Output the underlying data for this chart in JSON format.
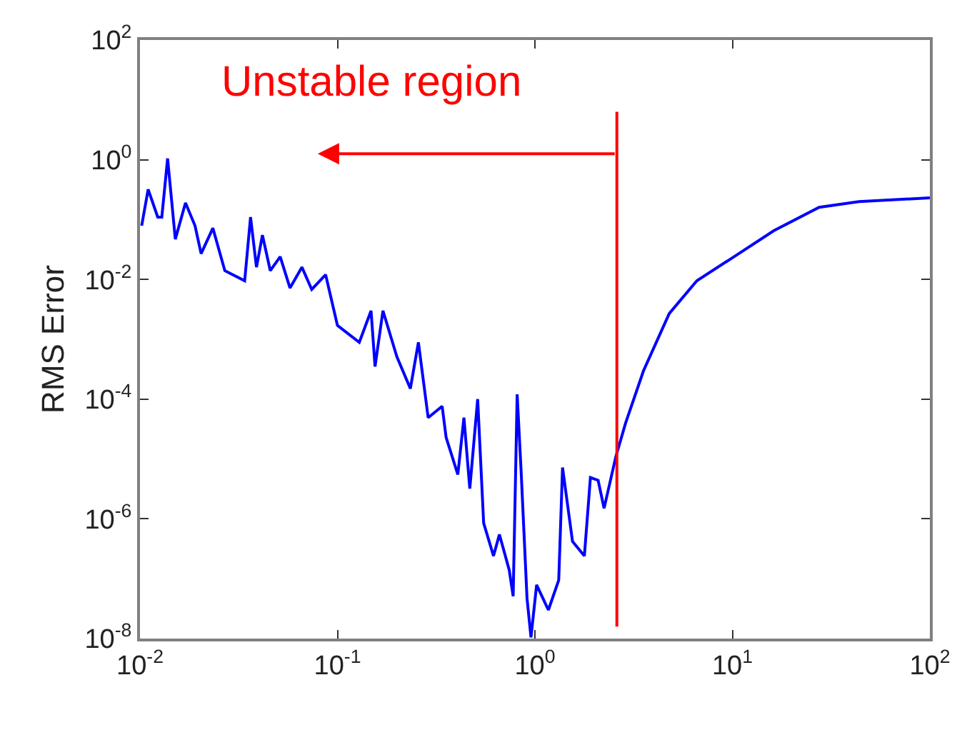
{
  "chart_data": {
    "type": "line",
    "ylabel": "RMS Error",
    "log": "xy",
    "marker": "none",
    "line_style": "solid",
    "annotations": [
      "Unstable region"
    ],
    "xlim": [
      0.01,
      100
    ],
    "ylim": [
      1e-08,
      100
    ],
    "xticks": [
      {
        "value": 0.01,
        "label": "10$^{-2}$"
      },
      {
        "value": 0.1,
        "label": "10$^{-1}$"
      },
      {
        "value": 1,
        "label": "10$^{0}$"
      },
      {
        "value": 10,
        "label": "10$^{1}$"
      },
      {
        "value": 100,
        "label": "10$^{2}$"
      }
    ],
    "yticks": [
      {
        "value": 1e-08,
        "label": "10$^{-8}$"
      },
      {
        "value": 1e-06,
        "label": "10$^{-6}$"
      },
      {
        "value": 0.0001,
        "label": "10$^{-4}$"
      },
      {
        "value": 0.01,
        "label": "10$^{-2}$"
      },
      {
        "value": 1,
        "label": "10$^{0}$"
      },
      {
        "value": 100,
        "label": "10$^{2}$"
      }
    ],
    "ref_lines": [
      {
        "axis": "x",
        "value": 2.6,
        "color": "#ff0000"
      }
    ],
    "series": [
      {
        "color": "#0000ff",
        "x": [
          0.0102,
          0.011,
          0.0123,
          0.0129,
          0.0138,
          0.0151,
          0.017,
          0.019,
          0.0204,
          0.0234,
          0.0269,
          0.0339,
          0.0363,
          0.0389,
          0.0417,
          0.0457,
          0.0513,
          0.0575,
          0.0661,
          0.0741,
          0.0871,
          0.1,
          0.129,
          0.148,
          0.155,
          0.17,
          0.2,
          0.234,
          0.257,
          0.288,
          0.339,
          0.355,
          0.407,
          0.437,
          0.468,
          0.513,
          0.55,
          0.617,
          0.661,
          0.741,
          0.776,
          0.813,
          0.851,
          0.912,
          0.955,
          1.02,
          1.17,
          1.32,
          1.38,
          1.55,
          1.78,
          1.91,
          2.09,
          2.24,
          2.57,
          2.88,
          3.55,
          4.79,
          6.61,
          10.2,
          16.2,
          27.5,
          43.7,
          100
        ],
        "values": [
          0.079,
          0.32,
          0.11,
          0.11,
          1.05,
          0.047,
          0.19,
          0.079,
          0.027,
          0.072,
          0.014,
          0.0095,
          0.11,
          0.016,
          0.055,
          0.014,
          0.024,
          0.0072,
          0.016,
          0.0068,
          0.012,
          0.0017,
          0.00089,
          0.003,
          0.00035,
          0.003,
          0.00051,
          0.00015,
          0.00089,
          4.9e-05,
          7.6e-05,
          2.3e-05,
          5.5e-06,
          4.9e-05,
          3.2e-06,
          0.0001,
          8.5e-07,
          2.4e-07,
          5.5e-07,
          1.4e-07,
          5.1e-08,
          0.00012,
          6.5e-06,
          4.7e-08,
          1.05e-08,
          7.9e-08,
          3e-08,
          9.5e-08,
          7.2e-06,
          4.2e-07,
          2.4e-07,
          4.9e-06,
          4.4e-06,
          1.5e-06,
          1.1e-05,
          4e-05,
          0.0003,
          0.0027,
          0.0095,
          0.024,
          0.065,
          0.16,
          0.2,
          0.23
        ]
      }
    ]
  }
}
